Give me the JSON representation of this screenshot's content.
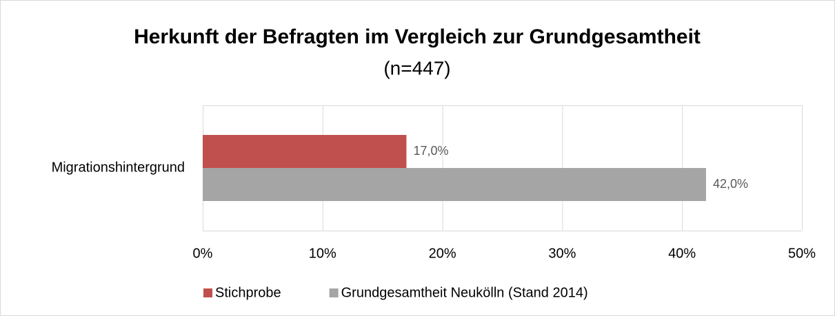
{
  "chart_data": {
    "type": "bar",
    "orientation": "horizontal",
    "title": "Herkunft der Befragten im Vergleich zur Grundgesamtheit",
    "subtitle": "(n=447)",
    "categories": [
      "Migrationshintergrund"
    ],
    "series": [
      {
        "name": "Stichprobe",
        "color": "#c0504d",
        "values": [
          17.0
        ],
        "value_labels": [
          "17,0%"
        ]
      },
      {
        "name": "Grundgesamtheit Neukölln (Stand 2014)",
        "color": "#a5a5a5",
        "values": [
          42.0
        ],
        "value_labels": [
          "42,0%"
        ]
      }
    ],
    "xlim": [
      0,
      50
    ],
    "xticks": [
      {
        "value": 0,
        "label": "0%"
      },
      {
        "value": 10,
        "label": "10%"
      },
      {
        "value": 20,
        "label": "20%"
      },
      {
        "value": 30,
        "label": "30%"
      },
      {
        "value": 40,
        "label": "40%"
      },
      {
        "value": 50,
        "label": "50%"
      }
    ],
    "grid": true,
    "legend": "bottom"
  }
}
